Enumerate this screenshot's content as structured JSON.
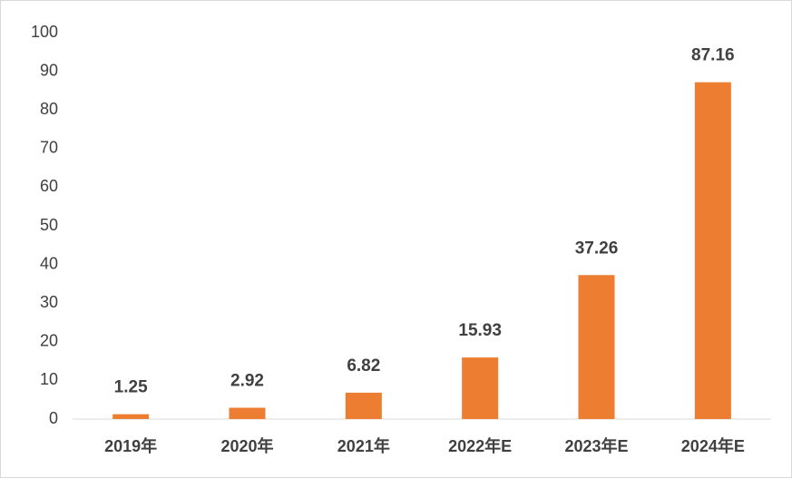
{
  "chart_data": {
    "type": "bar",
    "categories": [
      "2019年",
      "2020年",
      "2021年",
      "2022年E",
      "2023年E",
      "2024年E"
    ],
    "values": [
      1.25,
      2.92,
      6.82,
      15.93,
      37.26,
      87.16
    ],
    "color": "#ed7d31",
    "ylim": [
      0,
      100
    ],
    "yticks": [
      0,
      10,
      20,
      30,
      40,
      50,
      60,
      70,
      80,
      90,
      100
    ],
    "grid": false
  }
}
